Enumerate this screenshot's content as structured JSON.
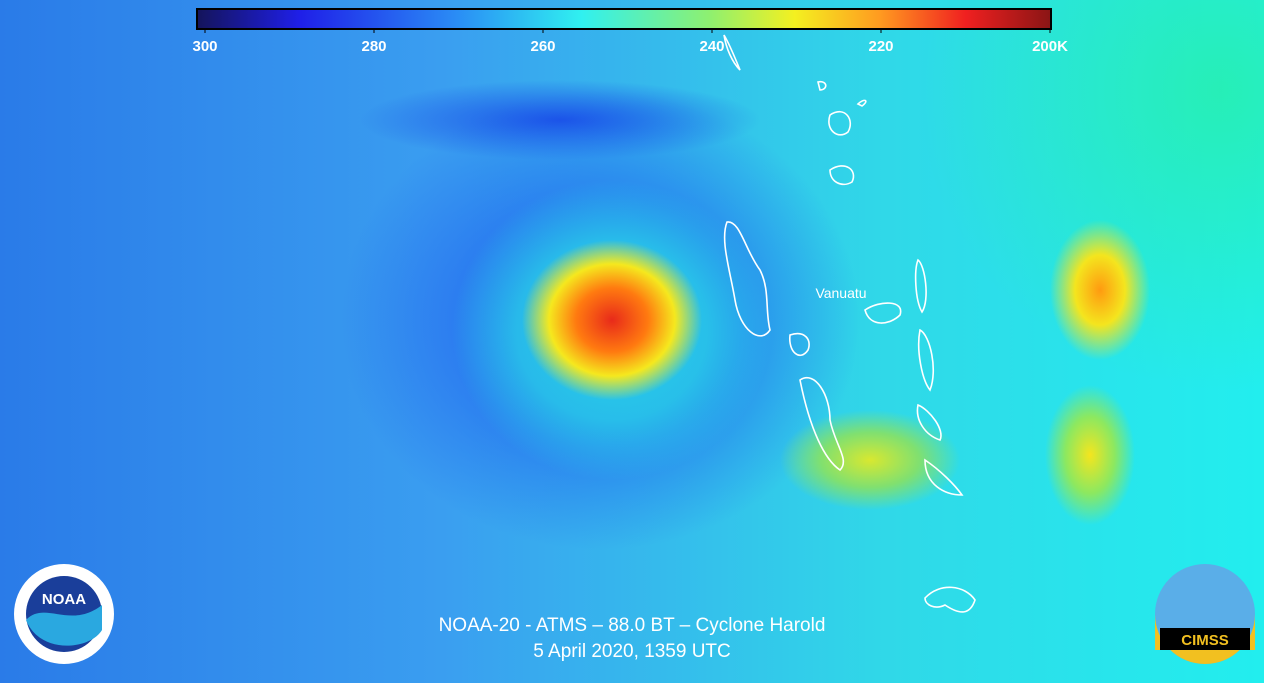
{
  "colorbar": {
    "range": [
      300,
      200
    ],
    "ticks": [
      300,
      280,
      260,
      240,
      220,
      {
        "value": 200,
        "label": "200K"
      }
    ]
  },
  "place_label": "Vanuatu",
  "caption": [
    "NOAA-20 - ATMS – 88.0 BT – Cyclone Harold",
    "5 April 2020, 1359 UTC"
  ],
  "logos": {
    "left": "NOAA",
    "right": "CIMSS"
  }
}
